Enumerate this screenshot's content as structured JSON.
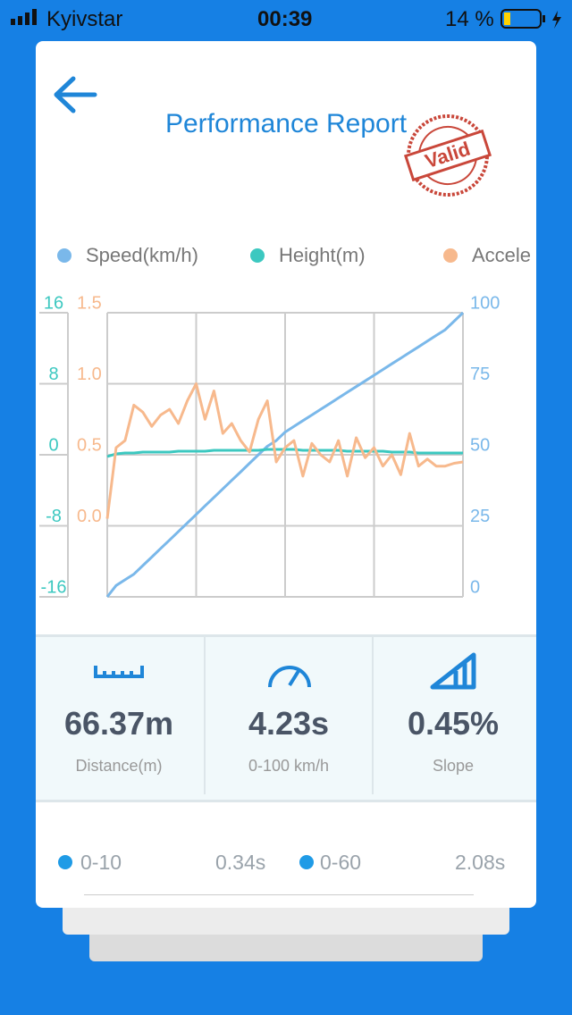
{
  "status_bar": {
    "carrier": "Kyivstar",
    "time": "00:39",
    "battery": "14 %"
  },
  "header": {
    "title": "Performance Report",
    "stamp": "Valid"
  },
  "chart_data": {
    "type": "line",
    "grid": true,
    "series": [
      {
        "name": "Speed(km/h)",
        "color": "#7ab8ea",
        "axis": "y2",
        "values": [
          0,
          4,
          6,
          8,
          11,
          14,
          17,
          20,
          23,
          26,
          29,
          32,
          35,
          38,
          41,
          44,
          47,
          50,
          53,
          55,
          58,
          60,
          62,
          64,
          66,
          68,
          70,
          72,
          74,
          76,
          78,
          80,
          82,
          84,
          86,
          88,
          90,
          92,
          94,
          97,
          100
        ]
      },
      {
        "name": "Height(m)",
        "color": "#3cc8c0",
        "axis": "y",
        "values": [
          -0.2,
          0.1,
          0.2,
          0.2,
          0.3,
          0.3,
          0.3,
          0.3,
          0.4,
          0.4,
          0.4,
          0.4,
          0.5,
          0.5,
          0.5,
          0.5,
          0.5,
          0.5,
          0.6,
          0.6,
          0.6,
          0.6,
          0.5,
          0.5,
          0.5,
          0.5,
          0.5,
          0.4,
          0.4,
          0.4,
          0.4,
          0.4,
          0.3,
          0.3,
          0.3,
          0.2,
          0.2,
          0.2,
          0.2,
          0.2,
          0.2
        ]
      },
      {
        "name": "Accele",
        "color": "#f7b98d",
        "axis": "y3",
        "values": [
          0.05,
          0.55,
          0.6,
          0.85,
          0.8,
          0.7,
          0.78,
          0.82,
          0.72,
          0.88,
          1.0,
          0.75,
          0.95,
          0.65,
          0.72,
          0.6,
          0.52,
          0.75,
          0.88,
          0.45,
          0.55,
          0.6,
          0.35,
          0.58,
          0.5,
          0.45,
          0.6,
          0.35,
          0.62,
          0.48,
          0.55,
          0.42,
          0.5,
          0.36,
          0.65,
          0.42,
          0.47,
          0.42,
          0.42,
          0.44,
          0.45
        ]
      }
    ],
    "ylim": [
      -16,
      16
    ],
    "yticks": [
      -16,
      -8,
      0,
      8,
      16
    ],
    "y2lim": [
      0,
      100
    ],
    "y2ticks": [
      0,
      25,
      50,
      75,
      100
    ],
    "y3lim": [
      -0.5,
      1.5
    ],
    "y3ticks": [
      {
        "value": 0,
        "label": "0.0"
      },
      0.5,
      {
        "value": 1,
        "label": "1.0"
      },
      1.5
    ]
  },
  "stats": [
    {
      "value": "66.37m",
      "label": "Distance(m)"
    },
    {
      "value": "4.23s",
      "label": "0-100 km/h"
    },
    {
      "value": "0.45%",
      "label": "Slope"
    }
  ],
  "splits": [
    {
      "label": "0-10",
      "time": "0.34s"
    },
    {
      "label": "0-60",
      "time": "2.08s"
    }
  ]
}
